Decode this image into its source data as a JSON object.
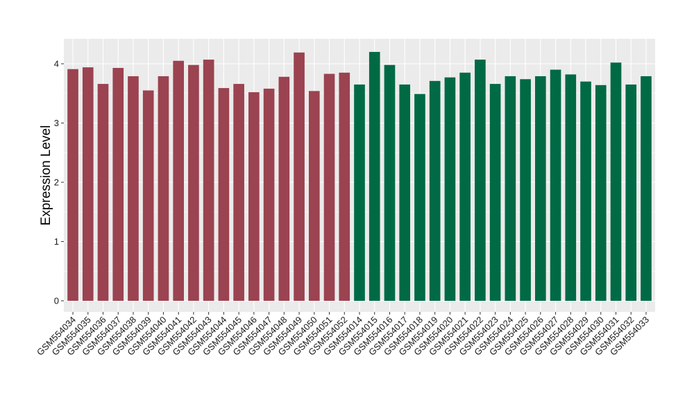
{
  "chart_data": {
    "type": "bar",
    "title": "",
    "xlabel": "",
    "ylabel": "Expression Level",
    "ylim": [
      0,
      4.4
    ],
    "yticks": [
      0,
      1,
      2,
      3,
      4
    ],
    "grid": true,
    "legend": "none",
    "panel_background": "#EBEBEB",
    "gridline_color": "#FFFFFF",
    "series": [
      {
        "color": "#9B4350",
        "categories": [
          "GSM554034",
          "GSM554035",
          "GSM554036",
          "GSM554037",
          "GSM554038",
          "GSM554039",
          "GSM554040",
          "GSM554041",
          "GSM554042",
          "GSM554043",
          "GSM554044",
          "GSM554045",
          "GSM554046",
          "GSM554047",
          "GSM554048",
          "GSM554049",
          "GSM554050",
          "GSM554051",
          "GSM554052"
        ],
        "values": [
          3.91,
          3.94,
          3.66,
          3.93,
          3.79,
          3.55,
          3.79,
          4.05,
          3.98,
          4.07,
          3.59,
          3.66,
          3.52,
          3.58,
          3.78,
          4.19,
          3.54,
          3.83,
          3.85
        ]
      },
      {
        "color": "#006A45",
        "categories": [
          "GSM554014",
          "GSM554015",
          "GSM554016",
          "GSM554017",
          "GSM554018",
          "GSM554019",
          "GSM554020",
          "GSM554021",
          "GSM554022",
          "GSM554023",
          "GSM554024",
          "GSM554025",
          "GSM554026",
          "GSM554027",
          "GSM554028",
          "GSM554029",
          "GSM554030",
          "GSM554031",
          "GSM554032",
          "GSM554033"
        ],
        "values": [
          3.65,
          4.2,
          3.98,
          3.65,
          3.49,
          3.71,
          3.77,
          3.85,
          4.07,
          3.66,
          3.79,
          3.74,
          3.79,
          3.9,
          3.82,
          3.7,
          3.64,
          4.02,
          3.65,
          3.79
        ]
      }
    ]
  }
}
